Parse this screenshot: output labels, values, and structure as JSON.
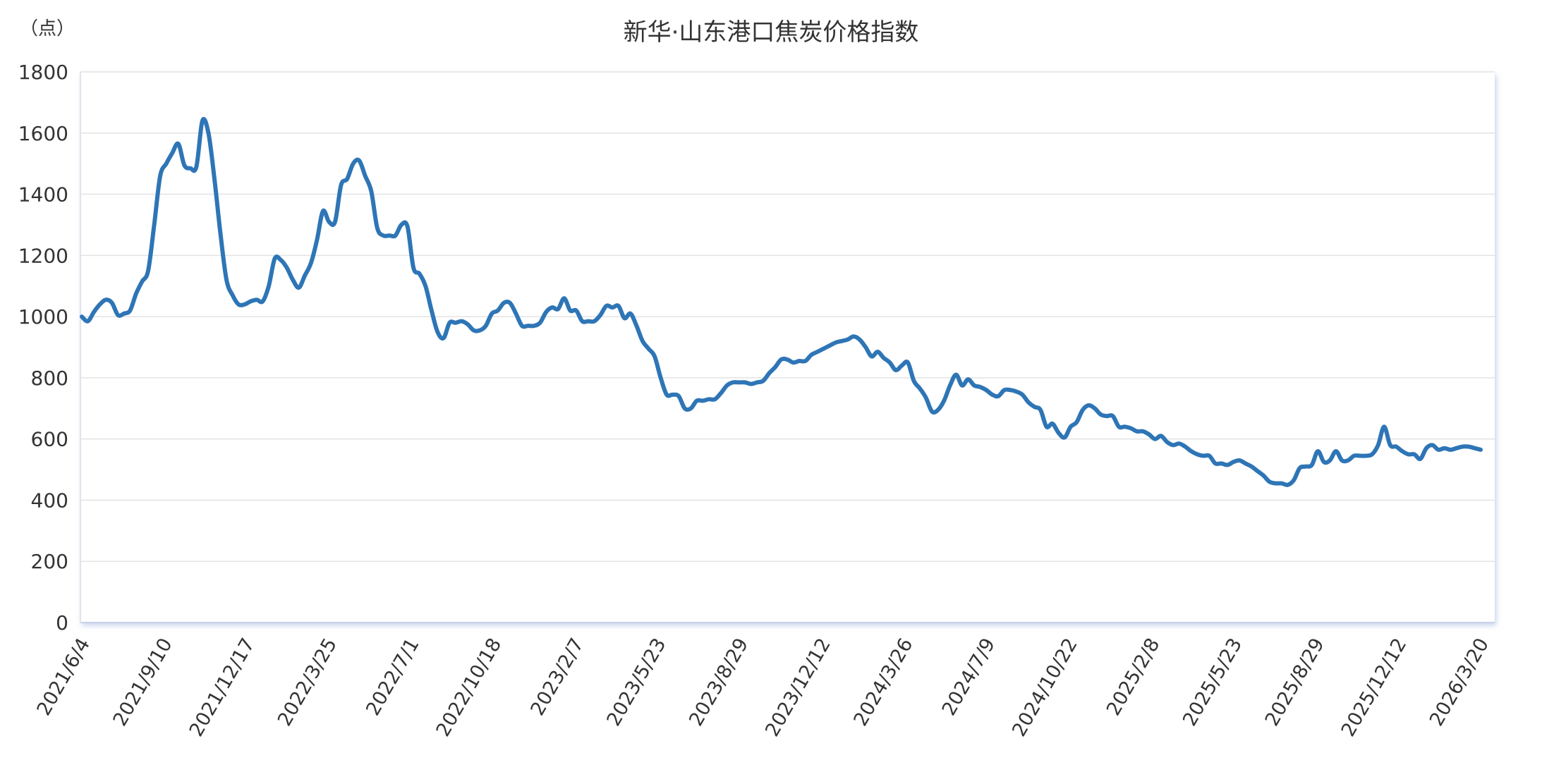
{
  "chart_data": {
    "type": "line",
    "title": "新华·山东港口焦炭价格指数",
    "ylabel": "（点）",
    "xlabel": "",
    "ylim": [
      0,
      1800
    ],
    "yticks": [
      0,
      200,
      400,
      600,
      800,
      1000,
      1200,
      1400,
      1600,
      1800
    ],
    "grid": true,
    "legend": null,
    "x_tick_labels": [
      "2021/6/4",
      "2021/9/10",
      "2021/12/17",
      "2022/3/25",
      "2022/7/1",
      "2022/10/18",
      "2023/2/7",
      "2023/5/23",
      "2023/8/29",
      "2023/12/12",
      "2024/3/26",
      "2024/7/9",
      "2024/10/22",
      "2025/2/8",
      "2025/5/23",
      "2025/8/29",
      "2025/12/12",
      "2026/3/20"
    ],
    "x_range": [
      "2021/6/4",
      "2026/3/20"
    ],
    "series": [
      {
        "name": "新华·山东港口焦炭价格指数",
        "color": "#2e75b6",
        "values": [
          1000,
          985,
          1015,
          1040,
          1055,
          1045,
          1005,
          1010,
          1020,
          1075,
          1115,
          1150,
          1300,
          1460,
          1500,
          1535,
          1565,
          1495,
          1485,
          1490,
          1640,
          1600,
          1450,
          1270,
          1120,
          1070,
          1040,
          1040,
          1050,
          1055,
          1050,
          1100,
          1190,
          1185,
          1160,
          1120,
          1095,
          1135,
          1175,
          1250,
          1345,
          1310,
          1310,
          1430,
          1450,
          1500,
          1510,
          1460,
          1410,
          1290,
          1265,
          1265,
          1265,
          1300,
          1295,
          1160,
          1140,
          1100,
          1020,
          950,
          930,
          980,
          980,
          985,
          975,
          955,
          955,
          970,
          1010,
          1020,
          1045,
          1045,
          1010,
          970,
          970,
          970,
          980,
          1015,
          1030,
          1025,
          1060,
          1020,
          1020,
          985,
          985,
          985,
          1005,
          1035,
          1030,
          1035,
          995,
          1010,
          970,
          920,
          895,
          870,
          800,
          745,
          745,
          740,
          700,
          700,
          725,
          725,
          730,
          730,
          750,
          775,
          785,
          785,
          785,
          780,
          785,
          790,
          815,
          835,
          860,
          860,
          850,
          855,
          855,
          875,
          885,
          895,
          905,
          915,
          920,
          925,
          935,
          925,
          900,
          870,
          885,
          865,
          850,
          825,
          840,
          850,
          790,
          765,
          735,
          690,
          695,
          725,
          775,
          810,
          775,
          795,
          775,
          770,
          760,
          745,
          740,
          760,
          760,
          755,
          745,
          720,
          705,
          695,
          640,
          650,
          620,
          605,
          640,
          655,
          695,
          710,
          700,
          680,
          675,
          675,
          640,
          640,
          635,
          625,
          625,
          615,
          600,
          610,
          590,
          580,
          585,
          575,
          560,
          550,
          545,
          545,
          520,
          520,
          515,
          525,
          530,
          520,
          510,
          495,
          480,
          460,
          455,
          455,
          450,
          465,
          505,
          510,
          515,
          560,
          525,
          530,
          560,
          530,
          530,
          545,
          545,
          545,
          550,
          580,
          640,
          580,
          575,
          560,
          550,
          550,
          535,
          570,
          580,
          565,
          570,
          565,
          570,
          575,
          575,
          570,
          565
        ]
      }
    ]
  },
  "colors": {
    "line": "#2e75b6",
    "grid": "#e3e3e3",
    "axis": "#c8cfe6",
    "text": "#333333"
  }
}
